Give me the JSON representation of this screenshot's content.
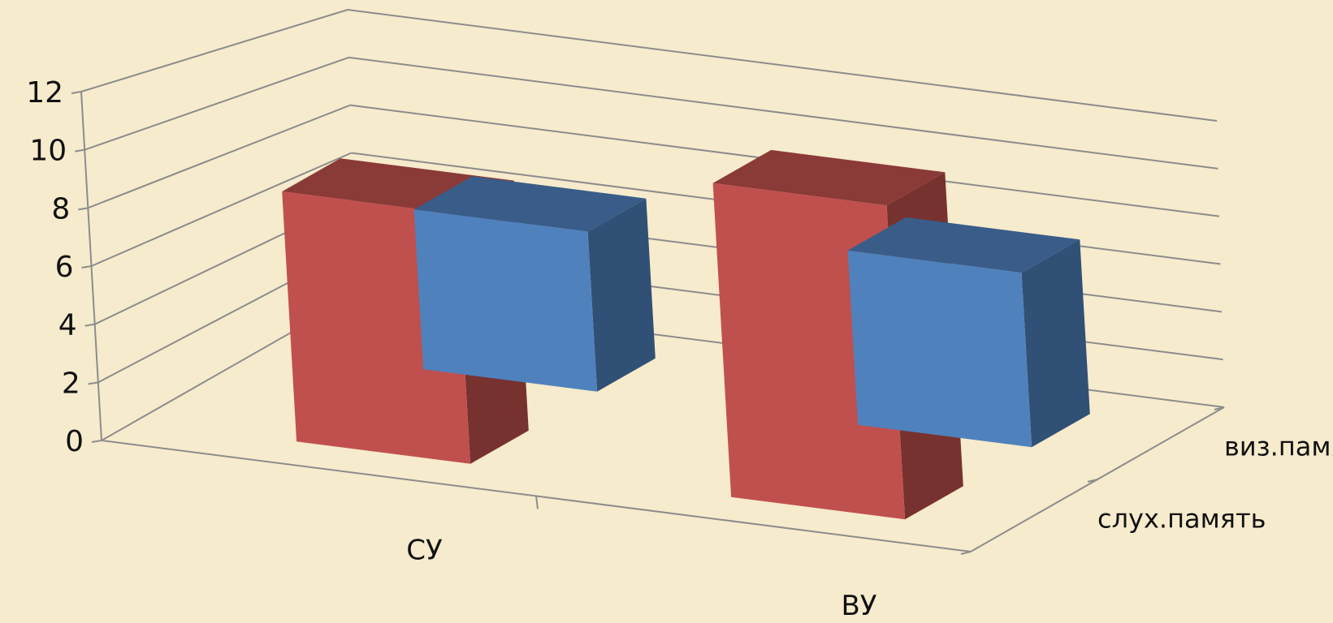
{
  "chart_data": {
    "type": "bar",
    "subtype": "3d-column",
    "categories": [
      "СУ",
      "ВУ"
    ],
    "series": [
      {
        "name": "слух.память",
        "values": [
          5.5,
          6
        ],
        "color": "#4f81bd"
      },
      {
        "name": "виз.память",
        "values": [
          8.6,
          10.8
        ],
        "color": "#c0504d"
      }
    ],
    "ylim": [
      0,
      12
    ],
    "yticks": [
      "0",
      "2",
      "4",
      "6",
      "8",
      "10",
      "12"
    ],
    "grid": true,
    "legend": "none",
    "background": "#f6ebcc"
  }
}
